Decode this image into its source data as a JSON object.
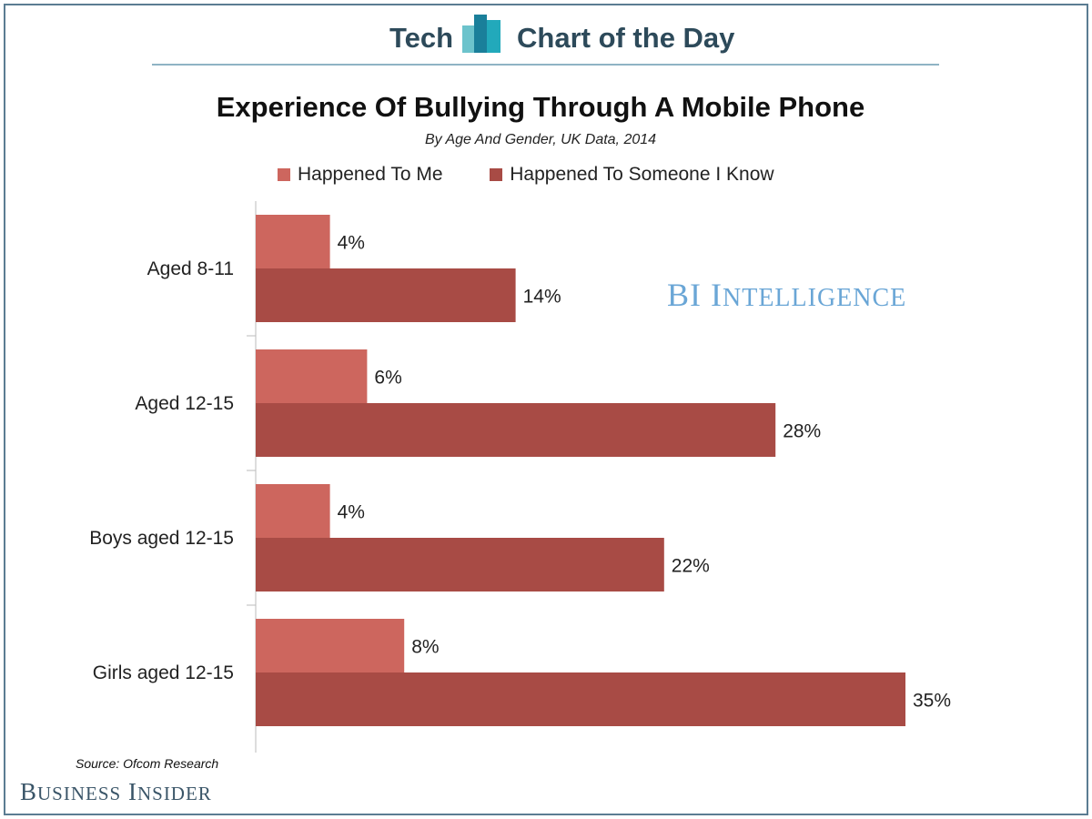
{
  "header": {
    "left": "Tech",
    "right": "Chart of the Day",
    "icon": "bar-chart-logo-icon"
  },
  "branding": {
    "watermark": "BI Intelligence",
    "publisher": "Business Insider"
  },
  "source": "Source: Ofcom Research",
  "colors": {
    "happened_to_me": "#cd665e",
    "someone_i_know": "#a84b45",
    "header": "#2d4a5a"
  },
  "chart_data": {
    "type": "bar",
    "orientation": "horizontal",
    "title": "Experience Of Bullying Through A Mobile Phone",
    "subtitle": "By Age And Gender, UK Data, 2014",
    "categories": [
      "Aged 8-11",
      "Aged 12-15",
      "Boys aged 12-15",
      "Girls aged 12-15"
    ],
    "series": [
      {
        "name": "Happened To Me",
        "values": [
          4,
          6,
          4,
          8
        ],
        "labels": [
          "4%",
          "6%",
          "4%",
          "8%"
        ]
      },
      {
        "name": "Happened To Someone I Know",
        "values": [
          14,
          28,
          22,
          35
        ],
        "labels": [
          "14%",
          "28%",
          "22%",
          "35%"
        ]
      }
    ],
    "xlim": [
      0,
      35
    ],
    "legend": "top",
    "grid": false
  }
}
